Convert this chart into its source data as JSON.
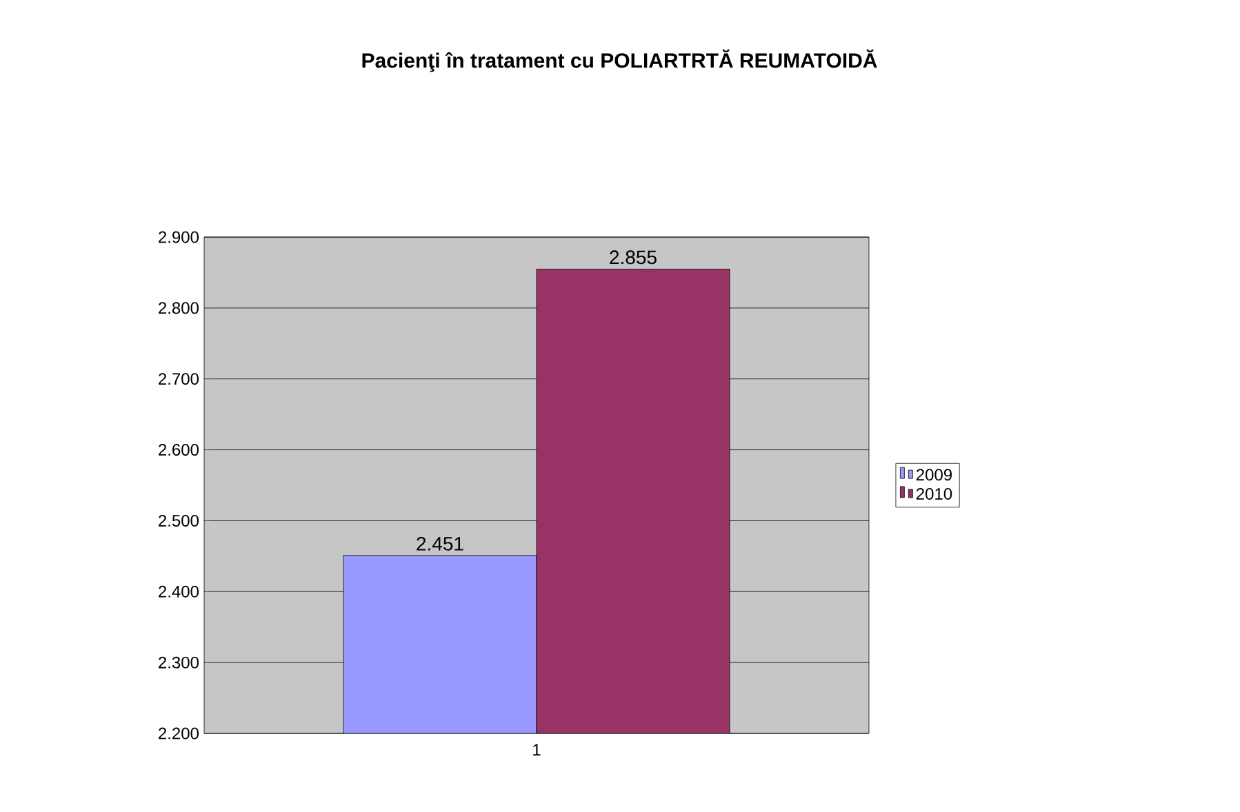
{
  "chart_data": {
    "type": "bar",
    "title": "Pacienţi în tratament cu POLIARTRTĂ REUMATOIDĂ",
    "categories": [
      "1"
    ],
    "series": [
      {
        "name": "2009",
        "color": "#9999ff",
        "values": [
          2451
        ],
        "value_labels": [
          "2.451"
        ]
      },
      {
        "name": "2010",
        "color": "#993366",
        "values": [
          2855
        ],
        "value_labels": [
          "2.855"
        ]
      }
    ],
    "ylim": [
      2200,
      2900
    ],
    "yticks": [
      {
        "value": 2200,
        "label": "2.200"
      },
      {
        "value": 2300,
        "label": "2.300"
      },
      {
        "value": 2400,
        "label": "2.400"
      },
      {
        "value": 2500,
        "label": "2.500"
      },
      {
        "value": 2600,
        "label": "2.600"
      },
      {
        "value": 2700,
        "label": "2.700"
      },
      {
        "value": 2800,
        "label": "2.800"
      },
      {
        "value": 2900,
        "label": "2.900"
      }
    ],
    "grid": "y",
    "legend": "right"
  }
}
